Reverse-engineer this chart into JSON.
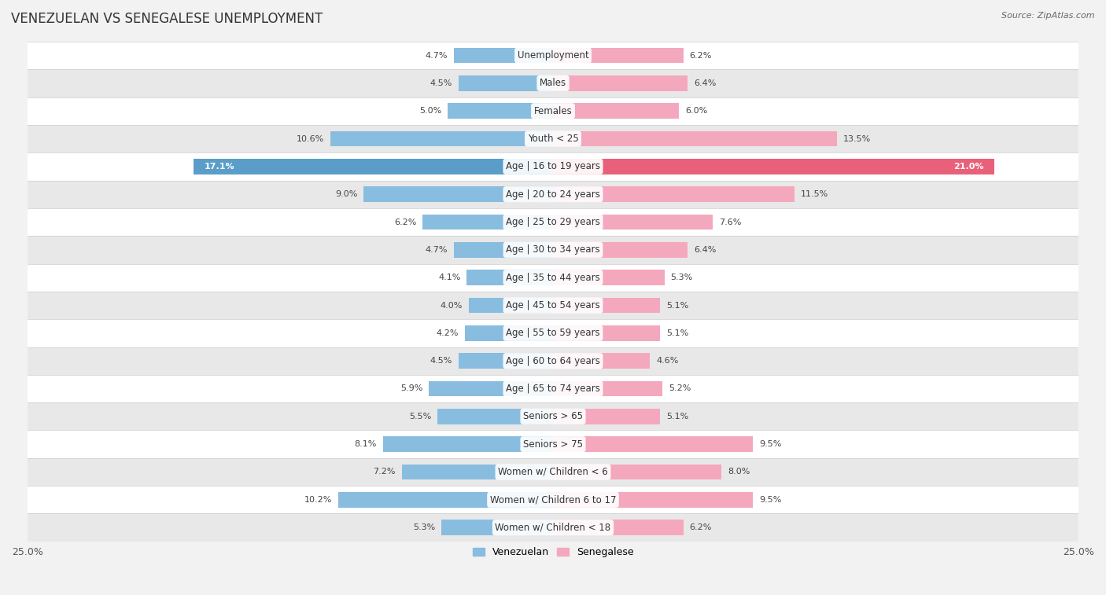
{
  "title": "VENEZUELAN VS SENEGALESE UNEMPLOYMENT",
  "source": "Source: ZipAtlas.com",
  "categories": [
    "Unemployment",
    "Males",
    "Females",
    "Youth < 25",
    "Age | 16 to 19 years",
    "Age | 20 to 24 years",
    "Age | 25 to 29 years",
    "Age | 30 to 34 years",
    "Age | 35 to 44 years",
    "Age | 45 to 54 years",
    "Age | 55 to 59 years",
    "Age | 60 to 64 years",
    "Age | 65 to 74 years",
    "Seniors > 65",
    "Seniors > 75",
    "Women w/ Children < 6",
    "Women w/ Children 6 to 17",
    "Women w/ Children < 18"
  ],
  "venezuelan": [
    4.7,
    4.5,
    5.0,
    10.6,
    17.1,
    9.0,
    6.2,
    4.7,
    4.1,
    4.0,
    4.2,
    4.5,
    5.9,
    5.5,
    8.1,
    7.2,
    10.2,
    5.3
  ],
  "senegalese": [
    6.2,
    6.4,
    6.0,
    13.5,
    21.0,
    11.5,
    7.6,
    6.4,
    5.3,
    5.1,
    5.1,
    4.6,
    5.2,
    5.1,
    9.5,
    8.0,
    9.5,
    6.2
  ],
  "venezuelan_color": "#88bde0",
  "senegalese_color": "#f4a8be",
  "venezuelan_highlight_color": "#5b9dc9",
  "senegalese_highlight_color": "#e8607a",
  "bar_height": 0.55,
  "xlim": 25.0,
  "bg_color": "#f2f2f2",
  "row_color_even": "#ffffff",
  "row_color_odd": "#e8e8e8",
  "highlight_row": "Age | 16 to 19 years",
  "legend_venezuelan": "Venezuelan",
  "legend_senegalese": "Senegalese",
  "title_fontsize": 12,
  "label_fontsize": 8.5,
  "value_fontsize": 8.0,
  "axis_label_fontsize": 9
}
